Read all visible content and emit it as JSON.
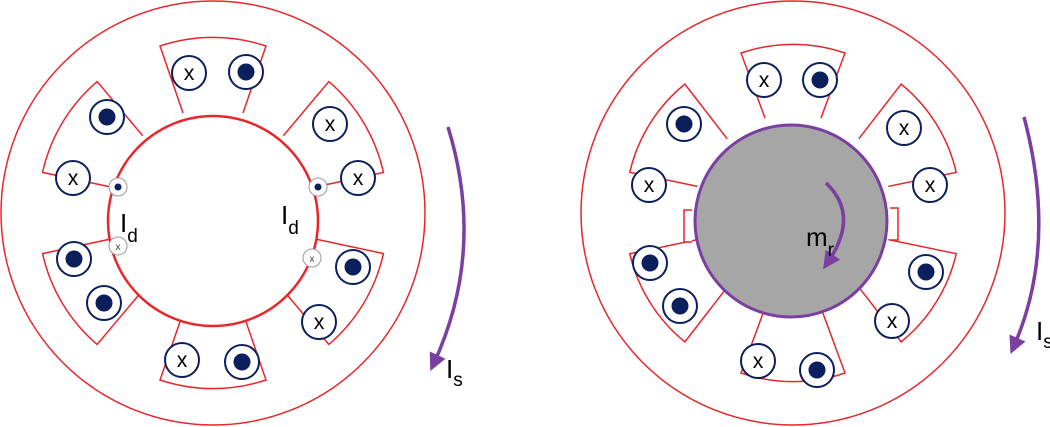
{
  "colors": {
    "outline": "#e8262a",
    "arrow": "#7a3fa0",
    "dot": "#0b1f5c",
    "rotor_fill": "#a6a6a6",
    "rotor_stroke": "#7a3fa0",
    "text": "#000000"
  },
  "left_motor": {
    "label_id_left": {
      "main": "I",
      "sub": "d"
    },
    "label_id_right": {
      "main": "I",
      "sub": "d"
    },
    "label_is": {
      "main": "I",
      "sub": "s"
    }
  },
  "right_motor": {
    "label_mr": {
      "main": "m",
      "sub": "r"
    },
    "label_is": {
      "main": "I",
      "sub": "s"
    }
  },
  "conductor_x": "x"
}
